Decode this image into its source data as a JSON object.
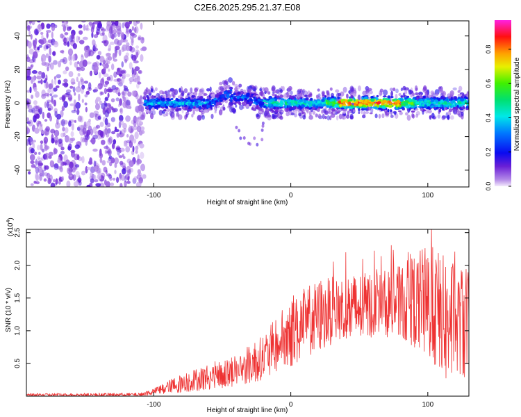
{
  "figure_title": "C2E6.2025.295.21.37.E08",
  "chart_data": [
    {
      "type": "heatmap",
      "title": "C2E6.2025.295.21.37.E08",
      "xlabel": "Height of straight line (km)",
      "ylabel": "Frequency (Hz)",
      "xlim": [
        -193,
        130
      ],
      "ylim": [
        -50,
        49
      ],
      "xticks": [
        -100,
        0,
        100
      ],
      "xtick_labels": [
        "-100",
        "0",
        "100"
      ],
      "yticks": [
        -40,
        -20,
        0,
        20,
        40
      ],
      "ytick_labels": [
        "-40",
        "-20",
        "0",
        "20",
        "40"
      ],
      "colorbar": {
        "label": "Normalized spectral amplitude",
        "range": [
          0,
          0.97
        ],
        "ticks": [
          0.0,
          0.2,
          0.4,
          0.6,
          0.8
        ],
        "tick_labels": [
          "0.0",
          "0.2",
          "0.4",
          "0.6",
          "0.8"
        ],
        "colormap": "rainbow (violet-blue-cyan-green-yellow-orange-red-magenta)"
      },
      "regions": [
        {
          "name": "noise scatter",
          "x_range": [
            -193,
            -107
          ],
          "freq_range": [
            -50,
            49
          ],
          "amplitude_range": [
            0.02,
            0.15
          ]
        },
        {
          "name": "signal band",
          "x_range": [
            -107,
            130
          ],
          "center_freq": 0,
          "half_width_hz": 5,
          "amplitude_range": [
            0.1,
            0.95
          ],
          "peak_near_km": [
            35,
            80
          ]
        },
        {
          "name": "frequency bump",
          "x_range": [
            -58,
            -22
          ],
          "center_freq": 6,
          "amplitude_range": [
            0.1,
            0.3
          ]
        }
      ]
    },
    {
      "type": "line",
      "title": "",
      "xlabel": "Height of straight line (km)",
      "ylabel": "SNR (10 * v/v)",
      "y_multiplier_label": "(x10",
      "y_multiplier_exponent": "4",
      "xlim": [
        -193,
        130
      ],
      "ylim": [
        0,
        2.55
      ],
      "xticks": [
        -100,
        0,
        100
      ],
      "xtick_labels": [
        "-100",
        "0",
        "100"
      ],
      "yticks": [
        0.5,
        1.0,
        1.5,
        2.0,
        2.5
      ],
      "ytick_labels": [
        "0.5",
        "1.0",
        "1.5",
        "2.0",
        "2.5"
      ],
      "series": [
        {
          "name": "SNR",
          "color": "#ee3333",
          "envelope_x": [
            -193,
            -110,
            -100,
            -80,
            -60,
            -40,
            -20,
            0,
            20,
            40,
            60,
            80,
            100,
            115,
            130
          ],
          "envelope_upper": [
            0.04,
            0.05,
            0.12,
            0.35,
            0.5,
            0.65,
            0.95,
            1.5,
            1.8,
            1.85,
            1.9,
            2.0,
            2.35,
            2.1,
            2.0
          ],
          "envelope_lower": [
            0.0,
            0.0,
            0.02,
            0.05,
            0.1,
            0.15,
            0.25,
            0.45,
            0.7,
            0.85,
            0.9,
            0.9,
            0.6,
            0.2,
            0.3
          ]
        }
      ]
    }
  ]
}
